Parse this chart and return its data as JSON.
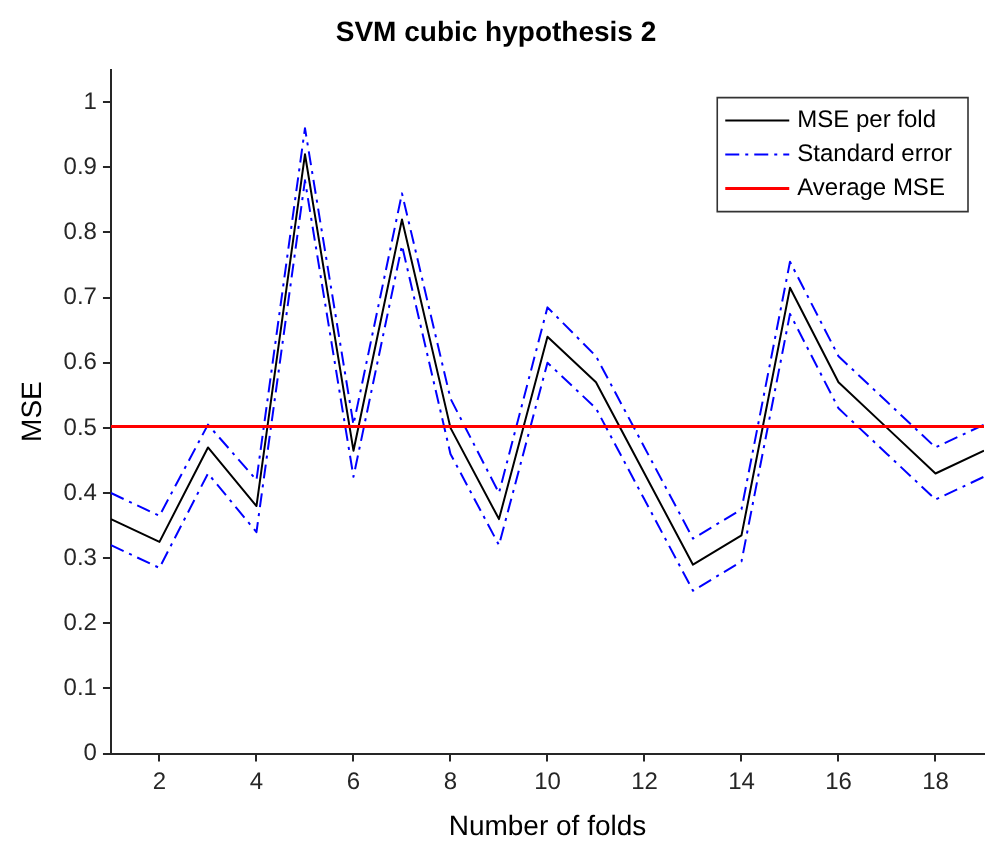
{
  "chart_data": {
    "type": "line",
    "title": "SVM cubic hypothesis 2",
    "xlabel": "Number of folds",
    "ylabel": "MSE",
    "x": [
      1,
      2,
      3,
      4,
      5,
      6,
      7,
      8,
      9,
      10,
      11,
      12,
      13,
      14,
      15,
      16,
      17,
      18,
      19
    ],
    "series": [
      {
        "name": "MSE per fold",
        "color": "#000000",
        "line_style": "solid",
        "values": [
          0.36,
          0.325,
          0.47,
          0.38,
          0.92,
          0.465,
          0.82,
          0.5,
          0.36,
          0.64,
          0.57,
          0.43,
          0.29,
          0.335,
          0.715,
          0.57,
          0.5,
          0.43,
          0.465
        ]
      },
      {
        "name": "Standard error",
        "color": "#0000ff",
        "line_style": "dashed",
        "values": [
          0.4,
          0.365,
          0.505,
          0.42,
          0.96,
          0.505,
          0.86,
          0.545,
          0.4,
          0.685,
          0.61,
          0.47,
          0.33,
          0.375,
          0.755,
          0.61,
          0.54,
          0.47,
          0.505
        ]
      },
      {
        "color": "#0000ff",
        "line_style": "dashed",
        "values": [
          0.32,
          0.285,
          0.43,
          0.34,
          0.88,
          0.425,
          0.78,
          0.46,
          0.32,
          0.6,
          0.53,
          0.39,
          0.25,
          0.295,
          0.675,
          0.53,
          0.46,
          0.39,
          0.425
        ]
      }
    ],
    "ref_lines": [
      {
        "axis": "y",
        "value": 0.502,
        "label": "Average MSE",
        "color": "#ff0000"
      }
    ],
    "xlim": [
      1,
      19
    ],
    "xticks": [
      2,
      4,
      6,
      8,
      10,
      12,
      14,
      16,
      18
    ],
    "ylim": [
      0,
      1.05
    ],
    "yticks": [
      0,
      0.1,
      0.2,
      0.3,
      0.4,
      0.5,
      0.6,
      0.7,
      0.8,
      0.9,
      1
    ],
    "grid": false,
    "legend": "top right",
    "marker": "none"
  }
}
